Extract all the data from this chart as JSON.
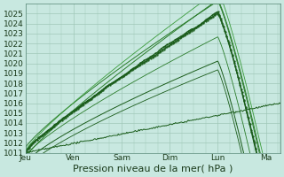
{
  "xlabel": "Pression niveau de la mer( hPa )",
  "background_color": "#c8e8e0",
  "grid_color": "#a0c8b8",
  "line_color_dark": "#1a5c1a",
  "line_color_mid": "#2a7c2a",
  "line_color_light": "#3a9c3a",
  "ylim": [
    1011,
    1026
  ],
  "yticks": [
    1011,
    1012,
    1013,
    1014,
    1015,
    1016,
    1017,
    1018,
    1019,
    1020,
    1021,
    1022,
    1023,
    1024,
    1025
  ],
  "xtick_positions": [
    0,
    24,
    48,
    72,
    96,
    120,
    127
  ],
  "xtick_labels": [
    "Jeu",
    "Ven",
    "Sam",
    "Dim",
    "Lun",
    "Ma",
    ""
  ],
  "tick_fontsize": 6.5,
  "xlabel_fontsize": 8,
  "total_hours": 127.2
}
